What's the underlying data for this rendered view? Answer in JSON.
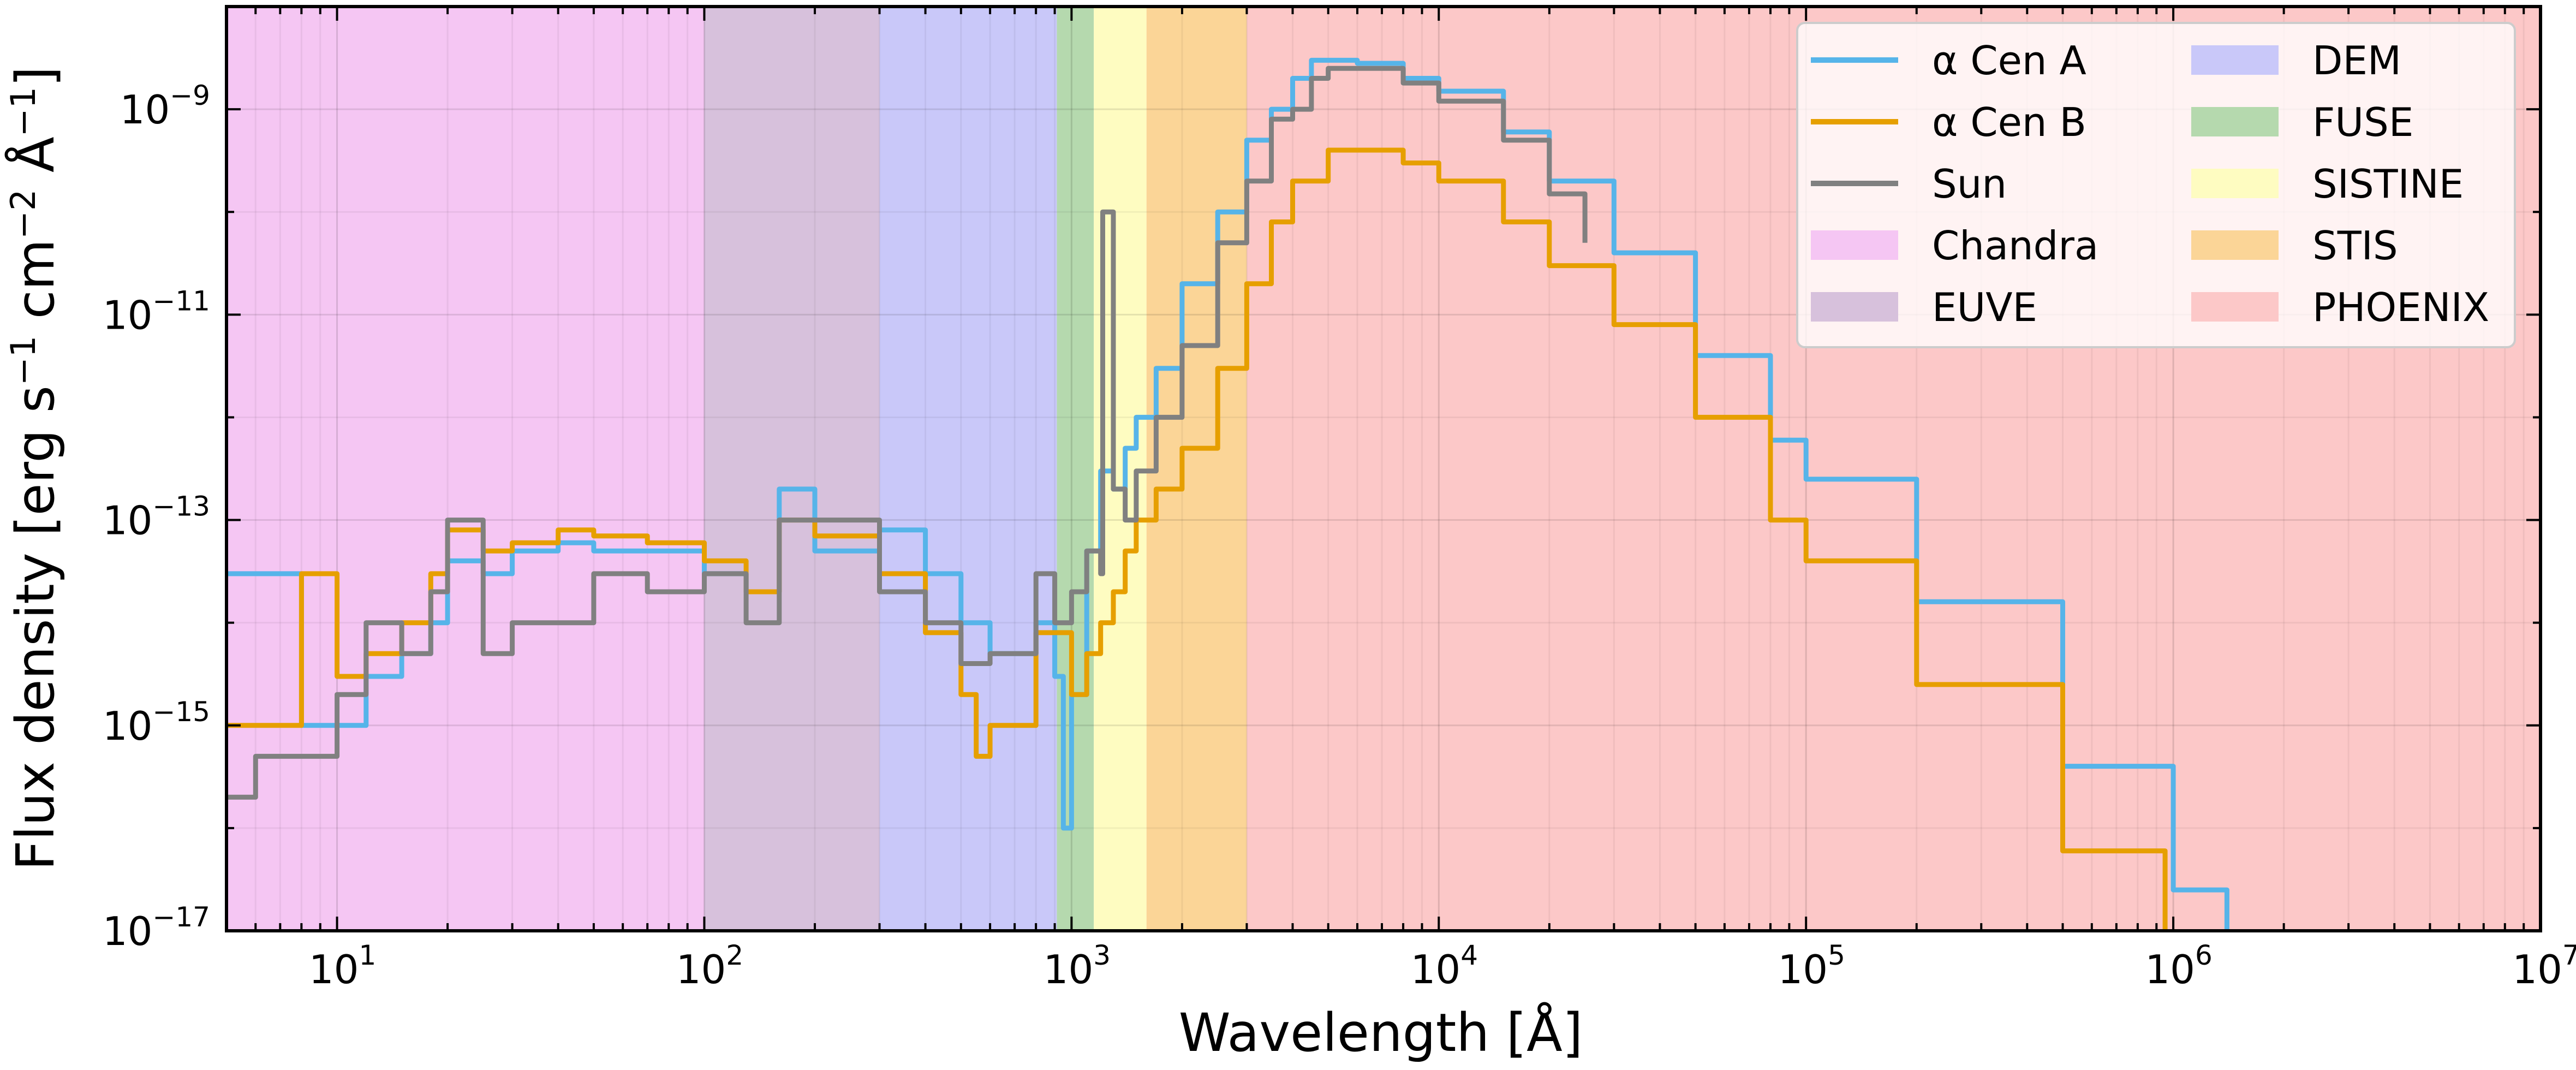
{
  "chart_data": {
    "type": "line",
    "title": "",
    "xlabel": "Wavelength [Å]",
    "ylabel_parts": {
      "prefix": "Flux density [erg s",
      "sup1": "−1",
      "mid": " cm",
      "sup2": "−2",
      "mid2": " Å",
      "sup3": "−1",
      "suffix": "]"
    },
    "xscale": "log",
    "yscale": "log",
    "xlim": [
      5,
      10000000
    ],
    "ylim": [
      1e-17,
      1e-08
    ],
    "grid": true,
    "legend_position": "top-right",
    "x_ticks": [
      {
        "value": 10,
        "base": "10",
        "exp": "1"
      },
      {
        "value": 100,
        "base": "10",
        "exp": "2"
      },
      {
        "value": 1000,
        "base": "10",
        "exp": "3"
      },
      {
        "value": 10000,
        "base": "10",
        "exp": "4"
      },
      {
        "value": 100000,
        "base": "10",
        "exp": "5"
      },
      {
        "value": 1000000,
        "base": "10",
        "exp": "6"
      },
      {
        "value": 10000000,
        "base": "10",
        "exp": "7"
      }
    ],
    "y_ticks": [
      {
        "value": 1e-09,
        "base": "10",
        "exp": "−9"
      },
      {
        "value": 1e-11,
        "base": "10",
        "exp": "−11"
      },
      {
        "value": 1e-13,
        "base": "10",
        "exp": "−13"
      },
      {
        "value": 1e-15,
        "base": "10",
        "exp": "−15"
      },
      {
        "value": 1e-17,
        "base": "10",
        "exp": "−17"
      }
    ],
    "regions": [
      {
        "name": "Chandra",
        "x0": 5,
        "x1": 100,
        "color": "#f5c6f3"
      },
      {
        "name": "EUVE",
        "x0": 100,
        "x1": 300,
        "color": "#d7c1dc"
      },
      {
        "name": "DEM",
        "x0": 300,
        "x1": 912,
        "color": "#c9c8f9"
      },
      {
        "name": "FUSE",
        "x0": 912,
        "x1": 1150,
        "color": "#b5d9ae"
      },
      {
        "name": "SISTINE",
        "x0": 1150,
        "x1": 1600,
        "color": "#fefcc1"
      },
      {
        "name": "STIS",
        "x0": 1600,
        "x1": 3000,
        "color": "#fbd597"
      },
      {
        "name": "PHOENIX",
        "x0": 3000,
        "x1": 10000000,
        "color": "#fcc8c8"
      }
    ],
    "series": [
      {
        "name": "α Cen A",
        "color": "#56b4e9",
        "x": [
          5,
          6,
          8,
          10,
          12,
          15,
          18,
          20,
          25,
          30,
          40,
          50,
          70,
          100,
          130,
          160,
          200,
          300,
          400,
          500,
          600,
          800,
          900,
          950,
          1000,
          1100,
          1200,
          1300,
          1400,
          1500,
          1700,
          2000,
          2500,
          3000,
          3500,
          4000,
          4500,
          5000,
          6000,
          8000,
          10000,
          15000,
          20000,
          30000,
          50000,
          80000,
          100000,
          200000,
          500000,
          1000000,
          1400000
        ],
        "y": [
          3e-14,
          3e-14,
          1e-15,
          1e-15,
          3e-15,
          5e-15,
          1e-14,
          4e-14,
          3e-14,
          5e-14,
          6e-14,
          5e-14,
          5e-14,
          3e-14,
          2e-14,
          2e-13,
          5e-14,
          8e-14,
          3e-14,
          1e-14,
          5e-15,
          1e-14,
          3e-15,
          1e-16,
          2e-15,
          5e-14,
          3e-13,
          2e-13,
          5e-13,
          1e-12,
          3e-12,
          2e-11,
          1e-10,
          5e-10,
          1e-09,
          2e-09,
          3e-09,
          3e-09,
          2.8e-09,
          2e-09,
          1.5e-09,
          6e-10,
          2e-10,
          4e-11,
          4e-12,
          6e-13,
          2.5e-13,
          1.6e-14,
          4e-16,
          2.5e-17,
          1e-17
        ]
      },
      {
        "name": "α Cen B",
        "color": "#e69f00",
        "x": [
          5,
          7,
          8,
          10,
          12,
          15,
          18,
          20,
          25,
          30,
          40,
          50,
          70,
          100,
          130,
          160,
          200,
          300,
          400,
          500,
          550,
          600,
          800,
          1000,
          1100,
          1200,
          1300,
          1400,
          1500,
          1700,
          2000,
          2500,
          3000,
          3500,
          4000,
          5000,
          6000,
          8000,
          10000,
          15000,
          20000,
          30000,
          50000,
          80000,
          100000,
          200000,
          500000,
          950000
        ],
        "y": [
          1e-15,
          1e-15,
          3e-14,
          3e-15,
          5e-15,
          1e-14,
          3e-14,
          8e-14,
          5e-14,
          6e-14,
          8e-14,
          7e-14,
          6e-14,
          4e-14,
          2e-14,
          1e-13,
          7e-14,
          3e-14,
          8e-15,
          2e-15,
          5e-16,
          1e-15,
          8e-15,
          2e-15,
          5e-15,
          1e-14,
          2e-14,
          5e-14,
          1e-13,
          2e-13,
          5e-13,
          3e-12,
          2e-11,
          8e-11,
          2e-10,
          4e-10,
          4e-10,
          3e-10,
          2e-10,
          8e-11,
          3e-11,
          8e-12,
          1e-12,
          1e-13,
          4e-14,
          2.5e-15,
          6e-17,
          1e-17
        ]
      },
      {
        "name": "Sun",
        "color": "#808080",
        "x": [
          5,
          6,
          8,
          10,
          12,
          15,
          18,
          20,
          25,
          30,
          40,
          50,
          70,
          100,
          130,
          160,
          200,
          300,
          400,
          500,
          600,
          800,
          900,
          1000,
          1100,
          1200,
          1216,
          1300,
          1400,
          1500,
          1700,
          2000,
          2500,
          3000,
          3500,
          4000,
          4500,
          5000,
          6000,
          8000,
          10000,
          15000,
          20000,
          25000
        ],
        "y": [
          2e-16,
          5e-16,
          5e-16,
          2e-15,
          1e-14,
          5e-15,
          2e-14,
          1e-13,
          5e-15,
          1e-14,
          1e-14,
          3e-14,
          2e-14,
          3e-14,
          1e-14,
          1e-13,
          1e-13,
          2e-14,
          1e-14,
          4e-15,
          5e-15,
          3e-14,
          1e-14,
          2e-14,
          5e-14,
          3e-14,
          1e-10,
          2e-13,
          1e-13,
          3e-13,
          1e-12,
          5e-12,
          5e-11,
          2e-10,
          8e-10,
          1e-09,
          2e-09,
          2.5e-09,
          2.5e-09,
          1.8e-09,
          1.2e-09,
          5e-10,
          1.5e-10,
          5e-11
        ]
      }
    ]
  }
}
